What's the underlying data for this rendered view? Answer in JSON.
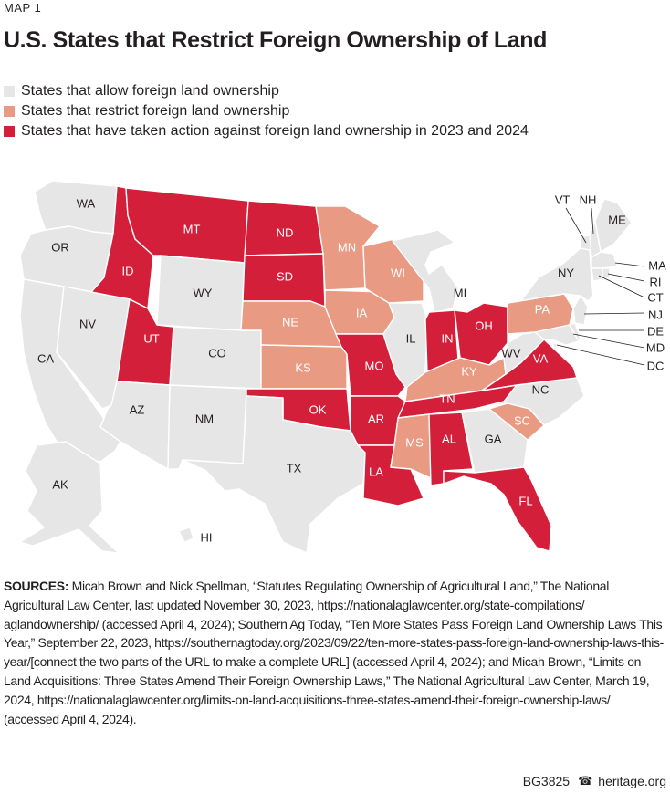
{
  "kicker": "MAP 1",
  "title": "U.S. States that Restrict Foreign Ownership of Land",
  "colors": {
    "allow": "#e6e6e6",
    "restrict": "#e89a82",
    "action": "#d31f3a",
    "border": "#ffffff",
    "label_light": "#231f20",
    "label_dark": "#ffffff"
  },
  "legend": [
    {
      "label": "States that allow foreign land ownership",
      "status": "allow"
    },
    {
      "label": "States that restrict foreign land ownership",
      "status": "restrict"
    },
    {
      "label": "States that have taken action against foreign land ownership in 2023 and 2024",
      "status": "action"
    }
  ],
  "states": {
    "WA": "allow",
    "OR": "allow",
    "CA": "allow",
    "NV": "allow",
    "AZ": "allow",
    "ID": "action",
    "MT": "action",
    "WY": "allow",
    "UT": "action",
    "CO": "allow",
    "NM": "allow",
    "ND": "action",
    "SD": "action",
    "NE": "restrict",
    "KS": "restrict",
    "OK": "action",
    "TX": "allow",
    "MN": "restrict",
    "IA": "restrict",
    "MO": "action",
    "AR": "action",
    "LA": "action",
    "WI": "restrict",
    "IL": "allow",
    "MI": "allow",
    "IN": "action",
    "OH": "action",
    "KY": "restrict",
    "TN": "action",
    "MS": "restrict",
    "AL": "action",
    "GA": "allow",
    "FL": "action",
    "SC": "restrict",
    "NC": "allow",
    "VA": "action",
    "WV": "allow",
    "PA": "restrict",
    "NY": "allow",
    "VT": "allow",
    "NH": "allow",
    "ME": "allow",
    "MA": "allow",
    "RI": "allow",
    "CT": "allow",
    "NJ": "allow",
    "DE": "allow",
    "MD": "allow",
    "DC": "allow",
    "AK": "allow",
    "HI": "allow"
  },
  "sources": {
    "label": "SOURCES:",
    "text": " Micah Brown and Nick Spellman, “Statutes Regulating Ownership of Agricultural Land,” The National Agricultural Law Center, last updated November 30, 2023, https://nationalaglawcenter.org/state-compilations/ aglandownership/ (accessed April 4, 2024); Southern Ag Today, “Ten More States Pass Foreign Land Ownership Laws This Year,” September 22, 2023, https://southernagtoday.org/2023/09/22/ten-more-states-pass-foreign-land-ownership-laws-this-year/[connect the two parts of the URL to make a complete URL] (accessed April 4, 2024); and Micah Brown, “Limits on Land Acquisitions: Three States Amend Their Foreign Ownership Laws,” The National Agricultural Law Center, March 19, 2024, https://nationalaglawcenter.org/limits-on-land-acquisitions-three-states-amend-their-foreign-ownership-laws/ (accessed April 4, 2024)."
  },
  "footer": {
    "code": "BG3825",
    "site": "heritage.org",
    "logo_icon": "liberty-bell-icon"
  }
}
